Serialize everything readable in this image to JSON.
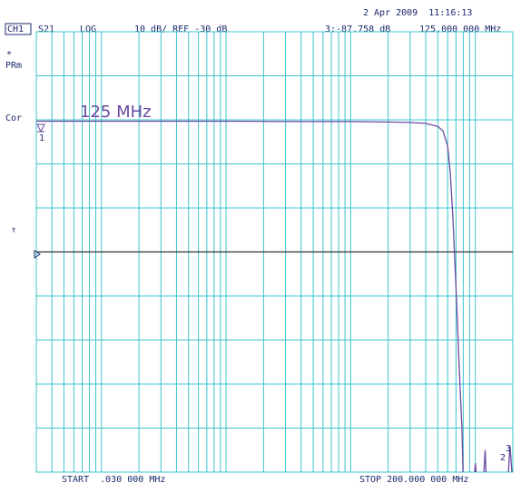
{
  "chart_data": {
    "type": "line",
    "xscale": "log",
    "xlim": [
      0.03,
      200
    ],
    "ylim": [
      -80,
      20
    ],
    "xticks": [
      0.04,
      0.05,
      0.06,
      0.07,
      0.08,
      0.09,
      0.1,
      0.2,
      0.3,
      0.4,
      0.5,
      0.6,
      0.7,
      0.8,
      0.9,
      1,
      2,
      3,
      4,
      5,
      6,
      7,
      8,
      9,
      10,
      20,
      30,
      40,
      50,
      60,
      70,
      80,
      90,
      100
    ],
    "yticks": [
      -70,
      -60,
      -50,
      -40,
      -30,
      -20,
      -10,
      0,
      10
    ],
    "grid": true,
    "reference_level": -30,
    "grid_color": "#3cc4cc",
    "x": [
      0.03,
      0.1,
      1,
      5,
      10,
      20,
      30,
      40,
      50,
      55,
      60,
      63,
      66,
      70,
      74,
      78,
      80,
      85,
      90,
      95,
      100,
      105,
      110,
      115,
      120,
      125,
      135,
      150,
      165,
      180,
      190,
      200
    ],
    "series": [
      {
        "color": "#6a4aa0",
        "values": [
          -0.3,
          -0.3,
          -0.3,
          -0.4,
          -0.4,
          -0.5,
          -0.6,
          -0.8,
          -1.5,
          -2.5,
          -6,
          -12,
          -22,
          -38,
          -55,
          -70,
          -82,
          -85,
          -83,
          -86,
          -78,
          -85,
          -80,
          -84,
          -75,
          -87.758,
          -82,
          -86,
          -80,
          -85,
          -74,
          -83
        ]
      }
    ],
    "annotations": {
      "channel": "CH1",
      "parameter": "S21",
      "format": "LOG",
      "scale": "10 dB/ REF -30 dB",
      "datetime": "2 Apr 2009  11:16:13",
      "marker_readout": "3:-87.758 dB",
      "marker_freq": "125.000 000 MHz",
      "star": "*",
      "prm": "PRm",
      "cor": "Cor",
      "arrow": "↑",
      "marker_label": "125 MHz",
      "marker1": "1",
      "marker2": "2",
      "marker3": "3",
      "start": "START  .030 000 MHz",
      "stop": "STOP 200.000 000 MHz"
    }
  }
}
